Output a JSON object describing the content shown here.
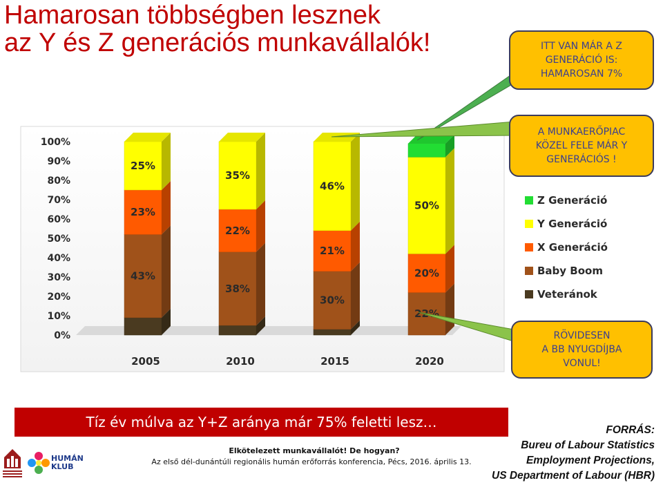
{
  "title_lines": [
    "Hamarosan többségben lesznek",
    "az Y és Z generációs munkavállalók!"
  ],
  "callouts": {
    "z_gen": "ITT VAN MÁR A Z\nGENERÁCIÓ IS:\nHAMAROSAN 7%",
    "y_gen": "A MUNKAERŐPIAC\nKÖZEL FELE MÁR Y\nGENERÁCIÓS !",
    "bb": "RÖVIDESEN\nA BB NYUGDÍJBA\nVONUL!"
  },
  "banner": "Tíz év múlva az  Y+Z aránya  már 75% feletti lesz…",
  "footer": {
    "line1": "Elkötelezett munkavállalót! De hogyan?",
    "line2": "Az első dél-dunántúli regionális humán erőforrás konferencia, Pécs, 2016. április 13."
  },
  "source_lines": [
    "FORRÁS:",
    "Bureu of Labour Statistics",
    "Employment Projections,",
    "US Department of Labour (HBR)"
  ],
  "logos": {
    "humanklub_line1": "HUMÁN",
    "humanklub_line2": "KLUB"
  },
  "chart_data": {
    "type": "bar",
    "stacked": true,
    "categories": [
      "2005",
      "2010",
      "2015",
      "2020"
    ],
    "series": [
      {
        "name": "Veteránok",
        "values": [
          9,
          5,
          3,
          0
        ],
        "color": "#4a3a20"
      },
      {
        "name": "Baby Boom",
        "values": [
          43,
          38,
          30,
          22
        ],
        "color": "#a0521a"
      },
      {
        "name": "X Generáció",
        "values": [
          23,
          22,
          21,
          20
        ],
        "color": "#ff5a00"
      },
      {
        "name": "Y Generáció",
        "values": [
          25,
          35,
          46,
          50
        ],
        "color": "#ffff00"
      },
      {
        "name": "Z Generáció",
        "values": [
          0,
          0,
          0,
          7
        ],
        "color": "#22dd33"
      }
    ],
    "bar_labels": [
      [
        "",
        "43%",
        "23%",
        "25%",
        ""
      ],
      [
        "",
        "38%",
        "22%",
        "35%",
        ""
      ],
      [
        "",
        "30%",
        "21%",
        "46%",
        ""
      ],
      [
        "",
        "22%",
        "20%",
        "50%",
        ""
      ]
    ],
    "y_ticks": [
      "0%",
      "10%",
      "20%",
      "30%",
      "40%",
      "50%",
      "60%",
      "70%",
      "80%",
      "90%",
      "100%"
    ],
    "ylim": [
      0,
      100
    ],
    "legend_position": "right",
    "legend_order": [
      "Z Generáció",
      "Y Generáció",
      "X Generáció",
      "Baby Boom",
      "Veteránok"
    ]
  }
}
